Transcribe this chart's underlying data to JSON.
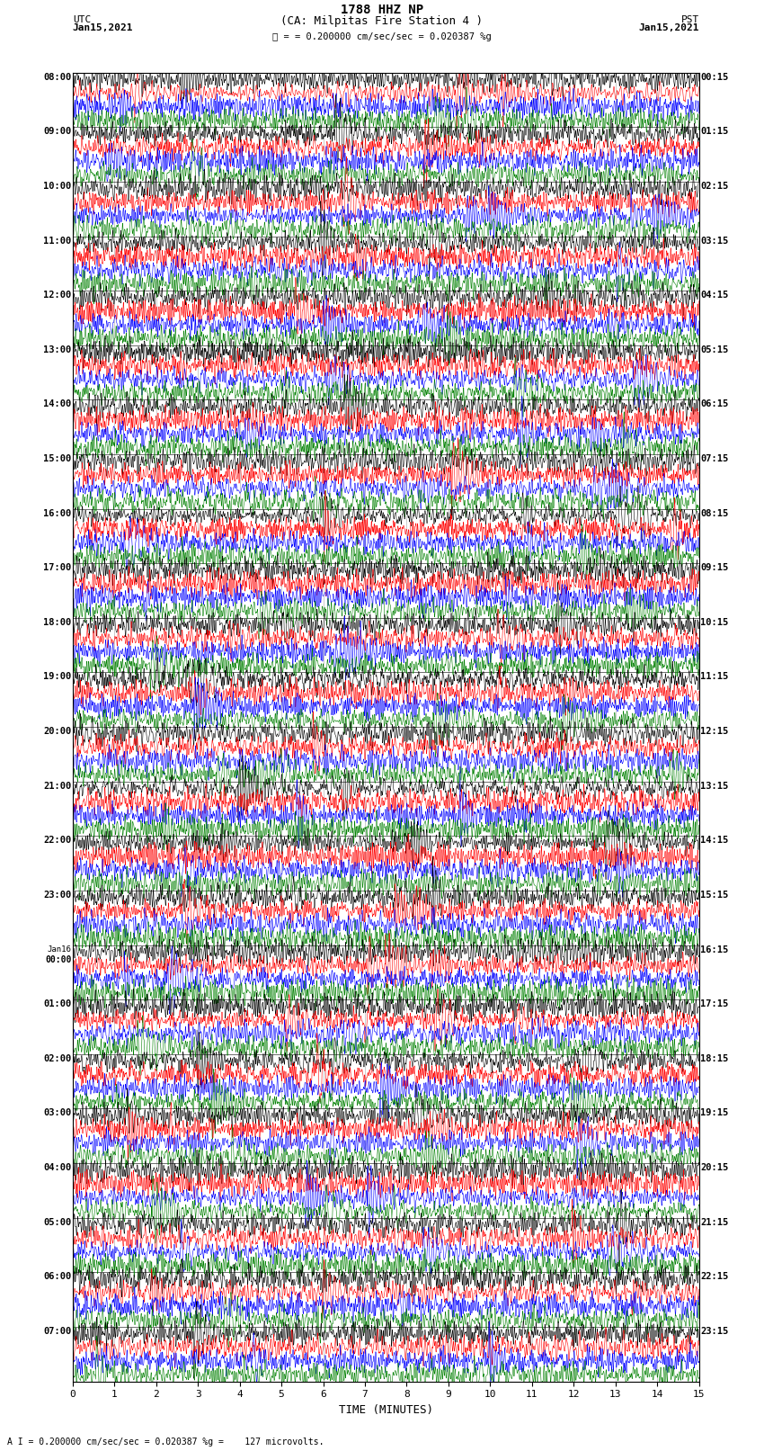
{
  "title_line1": "1788 HHZ NP",
  "title_line2": "(CA: Milpitas Fire Station 4 )",
  "scale_text": "= 0.200000 cm/sec/sec = 0.020387 %g",
  "footer_text": "A I = 0.200000 cm/sec/sec = 0.020387 %g =    127 microvolts.",
  "left_header": "UTC",
  "left_date": "Jan15,2021",
  "right_header": "PST",
  "right_date": "Jan15,2021",
  "xlabel": "TIME (MINUTES)",
  "left_times": [
    "08:00",
    "09:00",
    "10:00",
    "11:00",
    "12:00",
    "13:00",
    "14:00",
    "15:00",
    "16:00",
    "17:00",
    "18:00",
    "19:00",
    "20:00",
    "21:00",
    "22:00",
    "23:00",
    "Jan16",
    "01:00",
    "02:00",
    "03:00",
    "04:00",
    "05:00",
    "06:00",
    "07:00"
  ],
  "left_times_extra": [
    "",
    "",
    "",
    "",
    "",
    "",
    "",
    "",
    "",
    "",
    "",
    "",
    "",
    "",
    "",
    "",
    "00:00",
    "",
    "",
    "",
    "",
    "",
    "",
    ""
  ],
  "right_times": [
    "00:15",
    "01:15",
    "02:15",
    "03:15",
    "04:15",
    "05:15",
    "06:15",
    "07:15",
    "08:15",
    "09:15",
    "10:15",
    "11:15",
    "12:15",
    "13:15",
    "14:15",
    "15:15",
    "16:15",
    "17:15",
    "18:15",
    "19:15",
    "20:15",
    "21:15",
    "22:15",
    "23:15"
  ],
  "n_rows": 24,
  "traces_per_row": 4,
  "colors": [
    "black",
    "red",
    "blue",
    "green"
  ],
  "xlim": [
    0,
    15
  ],
  "xticks": [
    0,
    1,
    2,
    3,
    4,
    5,
    6,
    7,
    8,
    9,
    10,
    11,
    12,
    13,
    14,
    15
  ],
  "fig_width": 8.5,
  "fig_height": 16.13,
  "bg_color": "white",
  "dpi": 100,
  "noise_seed": 42
}
